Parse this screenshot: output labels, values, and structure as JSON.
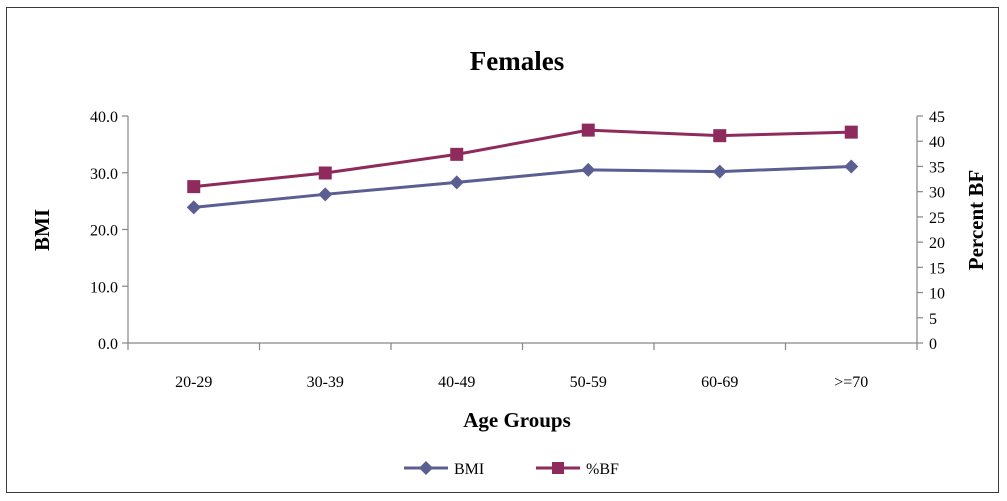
{
  "chart_data": {
    "type": "line",
    "title": "Females",
    "xlabel": "Age Groups",
    "ylabel": "BMI",
    "ylabel_right": "Percent BF",
    "categories": [
      "20-29",
      "30-39",
      "40-49",
      "50-59",
      "60-69",
      ">=70"
    ],
    "ylim": [
      0,
      40
    ],
    "y_ticks": [
      "0.0",
      "10.0",
      "20.0",
      "30.0",
      "40.0"
    ],
    "ylim_right": [
      0,
      45
    ],
    "y_ticks_right": [
      "0",
      "5",
      "10",
      "15",
      "20",
      "25",
      "30",
      "35",
      "40",
      "45"
    ],
    "grid": false,
    "legend_position": "bottom",
    "series": [
      {
        "name": "BMI",
        "axis": "left",
        "color": "#5B5E91",
        "marker": "diamond",
        "values": [
          23.9,
          26.2,
          28.3,
          30.5,
          30.2,
          31.1
        ]
      },
      {
        "name": "%BF",
        "axis": "right",
        "color": "#8E2A5C",
        "marker": "square",
        "values": [
          31.0,
          33.7,
          37.4,
          42.2,
          41.1,
          41.8
        ]
      }
    ]
  }
}
